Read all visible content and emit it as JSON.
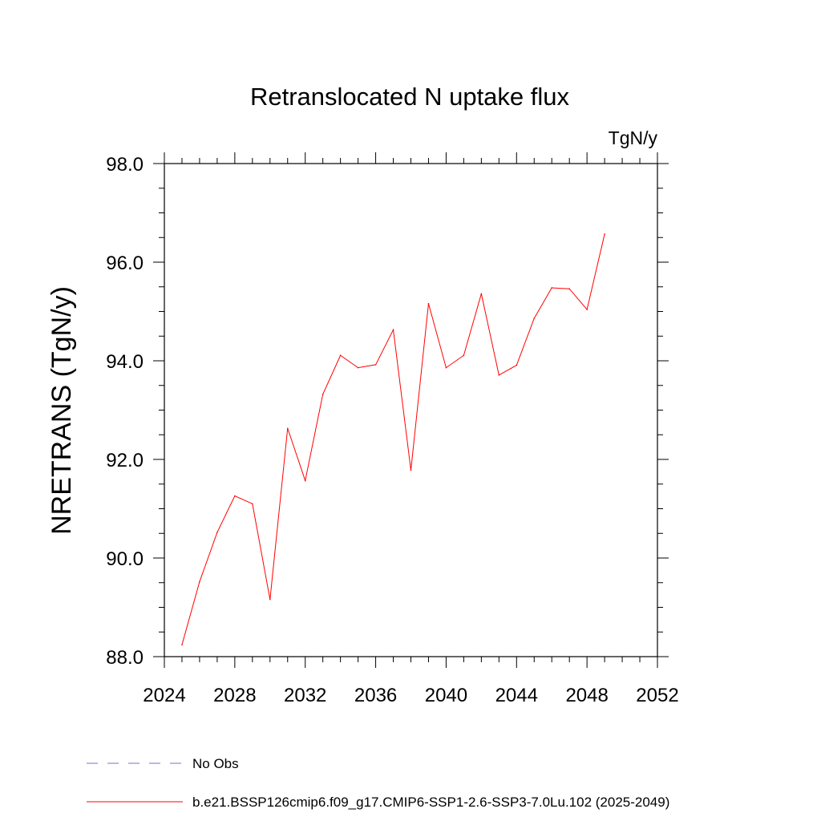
{
  "chart_data": {
    "type": "line",
    "title": "Retranslocated N uptake flux",
    "units": "TgN/y",
    "ylabel": "NRETRANS  (TgN/y)",
    "xlabel": "",
    "xlim": [
      2024,
      2052
    ],
    "ylim": [
      88.0,
      98.0
    ],
    "x_ticks": [
      2024,
      2028,
      2032,
      2036,
      2040,
      2044,
      2048,
      2052
    ],
    "x_tick_labels": [
      "2024",
      "2028",
      "2032",
      "2036",
      "2040",
      "2044",
      "2048",
      "2052"
    ],
    "y_ticks": [
      88,
      90,
      92,
      94,
      96,
      98
    ],
    "y_tick_labels": [
      "88.0",
      "90.0",
      "92.0",
      "94.0",
      "96.0",
      "98.0"
    ],
    "grid": false,
    "legend_position": "bottom-left",
    "series": [
      {
        "name": "b.e21.BSSP126cmip6.f09_g17.CMIP6-SSP1-2.6-SSP3-7.0Lu.102 (2025-2049)",
        "color": "#ff0000",
        "x": [
          2025,
          2026,
          2027,
          2028,
          2029,
          2030,
          2031,
          2032,
          2033,
          2034,
          2035,
          2036,
          2037,
          2038,
          2039,
          2040,
          2041,
          2042,
          2043,
          2044,
          2045,
          2046,
          2047,
          2048,
          2049
        ],
        "values": [
          88.24,
          89.52,
          90.52,
          91.26,
          91.1,
          89.16,
          92.63,
          91.57,
          93.32,
          94.11,
          93.86,
          93.92,
          94.63,
          91.78,
          95.16,
          93.86,
          94.11,
          95.36,
          93.71,
          93.91,
          94.86,
          95.48,
          95.46,
          95.04,
          96.57
        ]
      }
    ],
    "legend": [
      {
        "label": "No Obs",
        "color": "#7f6fc0",
        "style": "dashed"
      },
      {
        "label": "b.e21.BSSP126cmip6.f09_g17.CMIP6-SSP1-2.6-SSP3-7.0Lu.102 (2025-2049)",
        "color": "#ff0000",
        "style": "solid"
      }
    ]
  }
}
